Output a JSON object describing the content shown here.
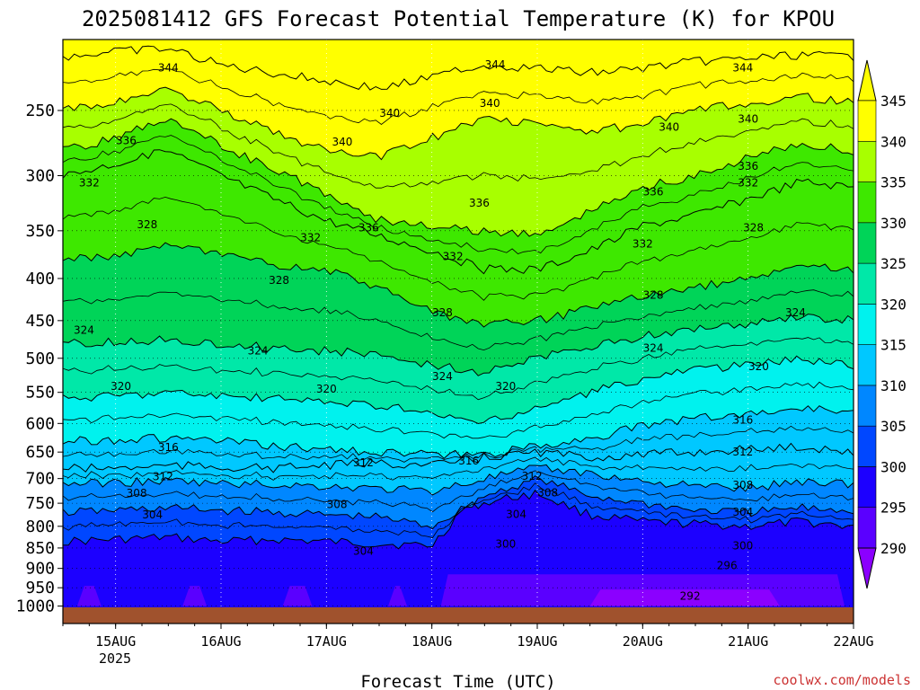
{
  "page": {
    "title": "2025081412 GFS Forecast Potential Temperature (K) for KPOU",
    "credit": "coolwx.com/models"
  },
  "chart_data": {
    "type": "heatmap",
    "title": "2025081412 GFS Forecast Potential Temperature (K) for KPOU",
    "xlabel": "Forecast Time (UTC)",
    "ylabel": "",
    "x_axis": {
      "ticks": [
        "15AUG",
        "16AUG",
        "17AUG",
        "18AUG",
        "19AUG",
        "20AUG",
        "21AUG",
        "22AUG"
      ],
      "sub_label": "2025",
      "range_days": [
        14.5,
        22.0
      ]
    },
    "y_axis": {
      "ticks": [
        250,
        300,
        350,
        400,
        450,
        500,
        550,
        600,
        650,
        700,
        750,
        800,
        850,
        900,
        950,
        1000
      ],
      "range_hPa": [
        205,
        1050
      ],
      "inverted": true
    },
    "grid": "dotted",
    "colorbar": {
      "levels": [
        290,
        295,
        300,
        305,
        310,
        315,
        320,
        325,
        330,
        335,
        340,
        345
      ],
      "colors": [
        "#8b00ff",
        "#5a00ff",
        "#1c00ff",
        "#0047ff",
        "#0087ff",
        "#00c8ff",
        "#00f2ee",
        "#00e8a8",
        "#00d458",
        "#3ee800",
        "#a8ff00",
        "#ffff00",
        "#ffff00"
      ],
      "position": "right"
    },
    "contour_interval": 4,
    "contour_labels": [
      "344",
      "340",
      "336",
      "332",
      "328",
      "324",
      "320",
      "316",
      "312",
      "308",
      "304",
      "300",
      "296",
      "292"
    ],
    "isentropes": [
      {
        "theta": 300,
        "pressure": [
          [
            14.5,
            835
          ],
          [
            15.0,
            830
          ],
          [
            15.5,
            825
          ],
          [
            16.0,
            835
          ],
          [
            16.5,
            830
          ],
          [
            17.0,
            835
          ],
          [
            17.5,
            840
          ],
          [
            18.0,
            845
          ],
          [
            18.3,
            760
          ],
          [
            18.7,
            740
          ],
          [
            19.0,
            730
          ],
          [
            19.5,
            775
          ],
          [
            20.0,
            790
          ],
          [
            20.5,
            795
          ],
          [
            21.0,
            800
          ],
          [
            21.5,
            790
          ],
          [
            22.0,
            800
          ]
        ]
      },
      {
        "theta": 304,
        "pressure": [
          [
            14.5,
            770
          ],
          [
            15.0,
            765
          ],
          [
            15.5,
            760
          ],
          [
            16.0,
            765
          ],
          [
            16.5,
            770
          ],
          [
            17.0,
            775
          ],
          [
            17.5,
            780
          ],
          [
            18.0,
            800
          ],
          [
            18.5,
            735
          ],
          [
            19.0,
            700
          ],
          [
            19.5,
            735
          ],
          [
            20.0,
            750
          ],
          [
            20.5,
            765
          ],
          [
            21.0,
            770
          ],
          [
            21.5,
            760
          ],
          [
            22.0,
            765
          ]
        ]
      },
      {
        "theta": 308,
        "pressure": [
          [
            14.5,
            710
          ],
          [
            15.0,
            708
          ],
          [
            15.5,
            705
          ],
          [
            16.0,
            710
          ],
          [
            16.5,
            712
          ],
          [
            17.0,
            715
          ],
          [
            17.5,
            720
          ],
          [
            18.0,
            725
          ],
          [
            18.5,
            700
          ],
          [
            19.0,
            680
          ],
          [
            19.5,
            690
          ],
          [
            20.0,
            705
          ],
          [
            20.5,
            715
          ],
          [
            21.0,
            720
          ],
          [
            21.5,
            705
          ],
          [
            22.0,
            710
          ]
        ]
      },
      {
        "theta": 312,
        "pressure": [
          [
            14.5,
            680
          ],
          [
            15.0,
            680
          ],
          [
            15.5,
            675
          ],
          [
            16.0,
            678
          ],
          [
            16.5,
            680
          ],
          [
            17.0,
            675
          ],
          [
            17.5,
            670
          ],
          [
            18.0,
            675
          ],
          [
            18.5,
            660
          ],
          [
            19.0,
            650
          ],
          [
            19.5,
            660
          ],
          [
            20.0,
            655
          ],
          [
            20.5,
            650
          ],
          [
            21.0,
            645
          ],
          [
            21.5,
            640
          ],
          [
            22.0,
            650
          ]
        ]
      },
      {
        "theta": 316,
        "pressure": [
          [
            14.5,
            630
          ],
          [
            15.0,
            628
          ],
          [
            15.5,
            625
          ],
          [
            16.0,
            630
          ],
          [
            16.5,
            640
          ],
          [
            17.0,
            645
          ],
          [
            17.5,
            650
          ],
          [
            18.0,
            655
          ],
          [
            18.5,
            655
          ],
          [
            19.0,
            640
          ],
          [
            19.5,
            625
          ],
          [
            20.0,
            605
          ],
          [
            20.5,
            590
          ],
          [
            21.0,
            585
          ],
          [
            21.5,
            575
          ],
          [
            22.0,
            580
          ]
        ]
      },
      {
        "theta": 320,
        "pressure": [
          [
            14.5,
            560
          ],
          [
            15.0,
            555
          ],
          [
            15.5,
            550
          ],
          [
            16.0,
            555
          ],
          [
            16.5,
            560
          ],
          [
            17.0,
            565
          ],
          [
            17.5,
            570
          ],
          [
            18.0,
            585
          ],
          [
            18.5,
            600
          ],
          [
            19.0,
            575
          ],
          [
            19.5,
            550
          ],
          [
            20.0,
            530
          ],
          [
            20.5,
            515
          ],
          [
            21.0,
            510
          ],
          [
            21.5,
            500
          ],
          [
            22.0,
            510
          ]
        ]
      },
      {
        "theta": 324,
        "pressure": [
          [
            14.5,
            480
          ],
          [
            15.0,
            478
          ],
          [
            15.5,
            475
          ],
          [
            16.0,
            480
          ],
          [
            16.5,
            485
          ],
          [
            17.0,
            490
          ],
          [
            17.5,
            495
          ],
          [
            18.0,
            510
          ],
          [
            18.5,
            520
          ],
          [
            19.0,
            500
          ],
          [
            19.5,
            485
          ],
          [
            20.0,
            470
          ],
          [
            20.5,
            460
          ],
          [
            21.0,
            455
          ],
          [
            21.5,
            445
          ],
          [
            22.0,
            450
          ]
        ]
      },
      {
        "theta": 328,
        "pressure": [
          [
            14.5,
            380
          ],
          [
            15.0,
            375
          ],
          [
            15.5,
            365
          ],
          [
            16.0,
            375
          ],
          [
            16.5,
            385
          ],
          [
            17.0,
            390
          ],
          [
            17.5,
            410
          ],
          [
            18.0,
            440
          ],
          [
            18.5,
            455
          ],
          [
            19.0,
            450
          ],
          [
            19.5,
            435
          ],
          [
            20.0,
            420
          ],
          [
            20.5,
            410
          ],
          [
            21.0,
            400
          ],
          [
            21.5,
            385
          ],
          [
            22.0,
            390
          ]
        ]
      },
      {
        "theta": 332,
        "pressure": [
          [
            14.5,
            300
          ],
          [
            15.0,
            290
          ],
          [
            15.5,
            280
          ],
          [
            16.0,
            300
          ],
          [
            16.5,
            320
          ],
          [
            17.0,
            340
          ],
          [
            17.5,
            355
          ],
          [
            18.0,
            370
          ],
          [
            18.5,
            390
          ],
          [
            19.0,
            390
          ],
          [
            19.5,
            370
          ],
          [
            20.0,
            345
          ],
          [
            20.5,
            335
          ],
          [
            21.0,
            320
          ],
          [
            21.5,
            305
          ],
          [
            22.0,
            310
          ]
        ]
      },
      {
        "theta": 336,
        "pressure": [
          [
            14.5,
            280
          ],
          [
            15.0,
            270
          ],
          [
            15.5,
            255
          ],
          [
            16.0,
            275
          ],
          [
            16.5,
            295
          ],
          [
            17.0,
            315
          ],
          [
            17.5,
            340
          ],
          [
            18.0,
            345
          ],
          [
            18.5,
            350
          ],
          [
            19.0,
            355
          ],
          [
            19.5,
            330
          ],
          [
            20.0,
            310
          ],
          [
            20.5,
            300
          ],
          [
            21.0,
            285
          ],
          [
            21.5,
            275
          ],
          [
            22.0,
            280
          ]
        ]
      },
      {
        "theta": 340,
        "pressure": [
          [
            14.5,
            250
          ],
          [
            15.0,
            245
          ],
          [
            15.5,
            235
          ],
          [
            16.0,
            250
          ],
          [
            16.5,
            265
          ],
          [
            17.0,
            280
          ],
          [
            17.5,
            285
          ],
          [
            18.0,
            270
          ],
          [
            18.5,
            255
          ],
          [
            19.0,
            260
          ],
          [
            19.5,
            265
          ],
          [
            20.0,
            260
          ],
          [
            20.5,
            250
          ],
          [
            21.0,
            245
          ],
          [
            21.5,
            240
          ],
          [
            22.0,
            245
          ]
        ]
      },
      {
        "theta": 344,
        "pressure": [
          [
            14.5,
            215
          ],
          [
            15.0,
            212
          ],
          [
            15.5,
            210
          ],
          [
            16.0,
            220
          ],
          [
            16.5,
            225
          ],
          [
            17.0,
            230
          ],
          [
            17.5,
            235
          ],
          [
            18.0,
            228
          ],
          [
            18.5,
            220
          ],
          [
            19.0,
            222
          ],
          [
            19.5,
            225
          ],
          [
            20.0,
            222
          ],
          [
            20.5,
            218
          ],
          [
            21.0,
            216
          ],
          [
            21.5,
            214
          ],
          [
            22.0,
            215
          ]
        ]
      }
    ],
    "label_positions": [
      {
        "theta": 344,
        "x": 15.5,
        "p": 222
      },
      {
        "theta": 344,
        "x": 18.6,
        "p": 220
      },
      {
        "theta": 344,
        "x": 20.95,
        "p": 222
      },
      {
        "theta": 340,
        "x": 17.6,
        "p": 252
      },
      {
        "theta": 340,
        "x": 18.55,
        "p": 245
      },
      {
        "theta": 340,
        "x": 20.25,
        "p": 262
      },
      {
        "theta": 340,
        "x": 21.0,
        "p": 256
      },
      {
        "theta": 340,
        "x": 17.15,
        "p": 273
      },
      {
        "theta": 336,
        "x": 15.1,
        "p": 272
      },
      {
        "theta": 336,
        "x": 17.4,
        "p": 347
      },
      {
        "theta": 336,
        "x": 18.45,
        "p": 324
      },
      {
        "theta": 336,
        "x": 20.1,
        "p": 314
      },
      {
        "theta": 336,
        "x": 21.0,
        "p": 292
      },
      {
        "theta": 332,
        "x": 14.75,
        "p": 306
      },
      {
        "theta": 332,
        "x": 16.85,
        "p": 357
      },
      {
        "theta": 332,
        "x": 18.2,
        "p": 376
      },
      {
        "theta": 332,
        "x": 20.0,
        "p": 363
      },
      {
        "theta": 332,
        "x": 21.0,
        "p": 306
      },
      {
        "theta": 328,
        "x": 15.3,
        "p": 344
      },
      {
        "theta": 328,
        "x": 16.55,
        "p": 402
      },
      {
        "theta": 328,
        "x": 18.1,
        "p": 440
      },
      {
        "theta": 328,
        "x": 20.1,
        "p": 419
      },
      {
        "theta": 328,
        "x": 21.05,
        "p": 347
      },
      {
        "theta": 324,
        "x": 14.7,
        "p": 462
      },
      {
        "theta": 324,
        "x": 16.35,
        "p": 490
      },
      {
        "theta": 324,
        "x": 18.1,
        "p": 526
      },
      {
        "theta": 324,
        "x": 20.1,
        "p": 486
      },
      {
        "theta": 324,
        "x": 21.45,
        "p": 440
      },
      {
        "theta": 320,
        "x": 15.05,
        "p": 541
      },
      {
        "theta": 320,
        "x": 17.0,
        "p": 545
      },
      {
        "theta": 320,
        "x": 18.7,
        "p": 541
      },
      {
        "theta": 320,
        "x": 21.1,
        "p": 512
      },
      {
        "theta": 316,
        "x": 15.5,
        "p": 642
      },
      {
        "theta": 316,
        "x": 18.35,
        "p": 666
      },
      {
        "theta": 316,
        "x": 20.95,
        "p": 594
      },
      {
        "theta": 312,
        "x": 15.45,
        "p": 696
      },
      {
        "theta": 312,
        "x": 17.35,
        "p": 670
      },
      {
        "theta": 312,
        "x": 18.95,
        "p": 695
      },
      {
        "theta": 312,
        "x": 20.95,
        "p": 650
      },
      {
        "theta": 308,
        "x": 15.2,
        "p": 729
      },
      {
        "theta": 308,
        "x": 17.1,
        "p": 753
      },
      {
        "theta": 308,
        "x": 19.1,
        "p": 728
      },
      {
        "theta": 308,
        "x": 20.95,
        "p": 713
      },
      {
        "theta": 304,
        "x": 15.35,
        "p": 775
      },
      {
        "theta": 304,
        "x": 17.35,
        "p": 858
      },
      {
        "theta": 304,
        "x": 18.8,
        "p": 774
      },
      {
        "theta": 304,
        "x": 20.95,
        "p": 769
      },
      {
        "theta": 300,
        "x": 18.7,
        "p": 841
      },
      {
        "theta": 300,
        "x": 20.95,
        "p": 845
      },
      {
        "theta": 296,
        "x": 20.8,
        "p": 893
      },
      {
        "theta": 292,
        "x": 20.45,
        "p": 972
      }
    ],
    "surface_pressure_hPa": 1000
  }
}
